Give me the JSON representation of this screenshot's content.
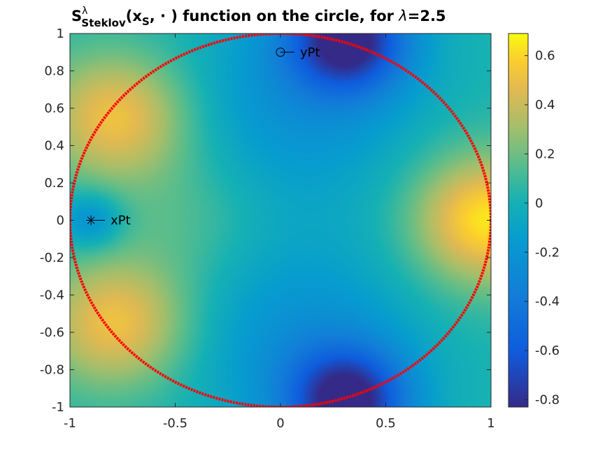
{
  "chart_data": {
    "type": "heatmap",
    "title": {
      "s": "S",
      "lambda_sup": "λ",
      "steklov_sub": "Steklov",
      "open_paren": "(x",
      "s_sub": "S",
      "rest": ", · ) function on the circle, for ",
      "lambda_sym": "λ",
      "lambda_value": "=2.5"
    },
    "xlim": [
      -1,
      1
    ],
    "ylim": [
      -1,
      1
    ],
    "xticks": [
      -1,
      -0.5,
      0,
      0.5,
      1
    ],
    "xtick_labels": [
      "-1",
      "-0.5",
      "0",
      "0.5",
      "1"
    ],
    "yticks": [
      -1,
      -0.8,
      -0.6,
      -0.4,
      -0.2,
      0,
      0.2,
      0.4,
      0.6,
      0.8,
      1
    ],
    "ytick_labels": [
      "-1",
      "-0.8",
      "-0.6",
      "-0.4",
      "-0.2",
      "0",
      "0.2",
      "0.4",
      "0.6",
      "0.8",
      "1"
    ],
    "colorbar": {
      "colormap": "parula",
      "limits": [
        -0.83,
        0.69
      ],
      "ticks": [
        -0.8,
        -0.6,
        -0.4,
        -0.2,
        0,
        0.2,
        0.4,
        0.6
      ],
      "tick_labels": [
        "-0.8",
        "-0.6",
        "-0.4",
        "-0.2",
        "0",
        "0.2",
        "0.4",
        "0.6"
      ]
    },
    "field": {
      "base": 0.03,
      "features": [
        {
          "x": -0.9,
          "y": 0.0,
          "amplitude": -0.3,
          "spread": 0.012
        },
        {
          "x": -0.78,
          "y": 0.55,
          "amplitude": 0.5,
          "spread": 0.06
        },
        {
          "x": -0.78,
          "y": -0.55,
          "amplitude": 0.5,
          "spread": 0.06
        },
        {
          "x": 0.98,
          "y": 0.0,
          "amplitude": 0.62,
          "spread": 0.06
        },
        {
          "x": 0.32,
          "y": 0.97,
          "amplitude": -0.85,
          "spread": 0.04
        },
        {
          "x": 0.32,
          "y": -0.97,
          "amplitude": -0.85,
          "spread": 0.04
        },
        {
          "x": 0.1,
          "y": 0.65,
          "amplitude": -0.25,
          "spread": 0.15
        },
        {
          "x": 0.1,
          "y": -0.65,
          "amplitude": -0.25,
          "spread": 0.15
        },
        {
          "x": -0.45,
          "y": 0.0,
          "amplitude": 0.12,
          "spread": 0.06
        }
      ]
    },
    "circle": {
      "center": [
        0,
        0
      ],
      "radius": 1,
      "color": "#ff0000"
    },
    "points": [
      {
        "name": "xPt",
        "x": -0.9,
        "y": 0.0,
        "marker": "asterisk",
        "label": "xPt"
      },
      {
        "name": "yPt",
        "x": 0.0,
        "y": 0.9,
        "marker": "circle",
        "label": "yPt"
      }
    ]
  }
}
